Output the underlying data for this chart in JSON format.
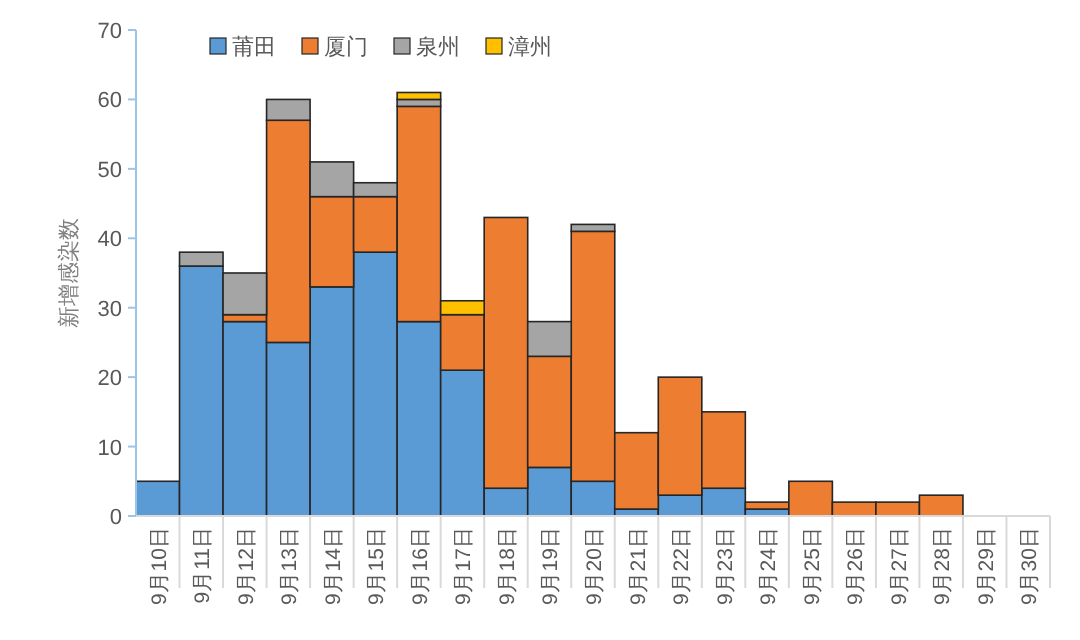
{
  "chart_data": {
    "type": "bar",
    "stacked": true,
    "ylabel": "新增感染数",
    "categories": [
      "9月10日",
      "9月11日",
      "9月12日",
      "9月13日",
      "9月14日",
      "9月15日",
      "9月16日",
      "9月17日",
      "9月18日",
      "9月19日",
      "9月20日",
      "9月21日",
      "9月22日",
      "9月23日",
      "9月24日",
      "9月25日",
      "9月26日",
      "9月27日",
      "9月28日",
      "9月29日",
      "9月30日"
    ],
    "series": [
      {
        "name": "莆田",
        "color": "#5b9bd5",
        "values": [
          5,
          36,
          28,
          25,
          33,
          38,
          28,
          21,
          4,
          7,
          5,
          1,
          3,
          4,
          1,
          0,
          0,
          0,
          0,
          0,
          0
        ]
      },
      {
        "name": "厦门",
        "color": "#ed7d31",
        "values": [
          0,
          0,
          1,
          32,
          13,
          8,
          31,
          8,
          39,
          16,
          36,
          11,
          17,
          11,
          1,
          5,
          2,
          2,
          3,
          0,
          0
        ]
      },
      {
        "name": "泉州",
        "color": "#a5a5a5",
        "values": [
          0,
          2,
          6,
          3,
          5,
          2,
          1,
          0,
          0,
          5,
          1,
          0,
          0,
          0,
          0,
          0,
          0,
          0,
          0,
          0,
          0
        ]
      },
      {
        "name": "漳州",
        "color": "#ffc000",
        "values": [
          0,
          0,
          0,
          0,
          0,
          0,
          1,
          2,
          0,
          0,
          0,
          0,
          0,
          0,
          0,
          0,
          0,
          0,
          0,
          0,
          0
        ]
      }
    ],
    "ylim": [
      0,
      70
    ],
    "yticks": [
      0,
      10,
      20,
      30,
      40,
      50,
      60,
      70
    ],
    "legend": "top",
    "grid": false
  }
}
